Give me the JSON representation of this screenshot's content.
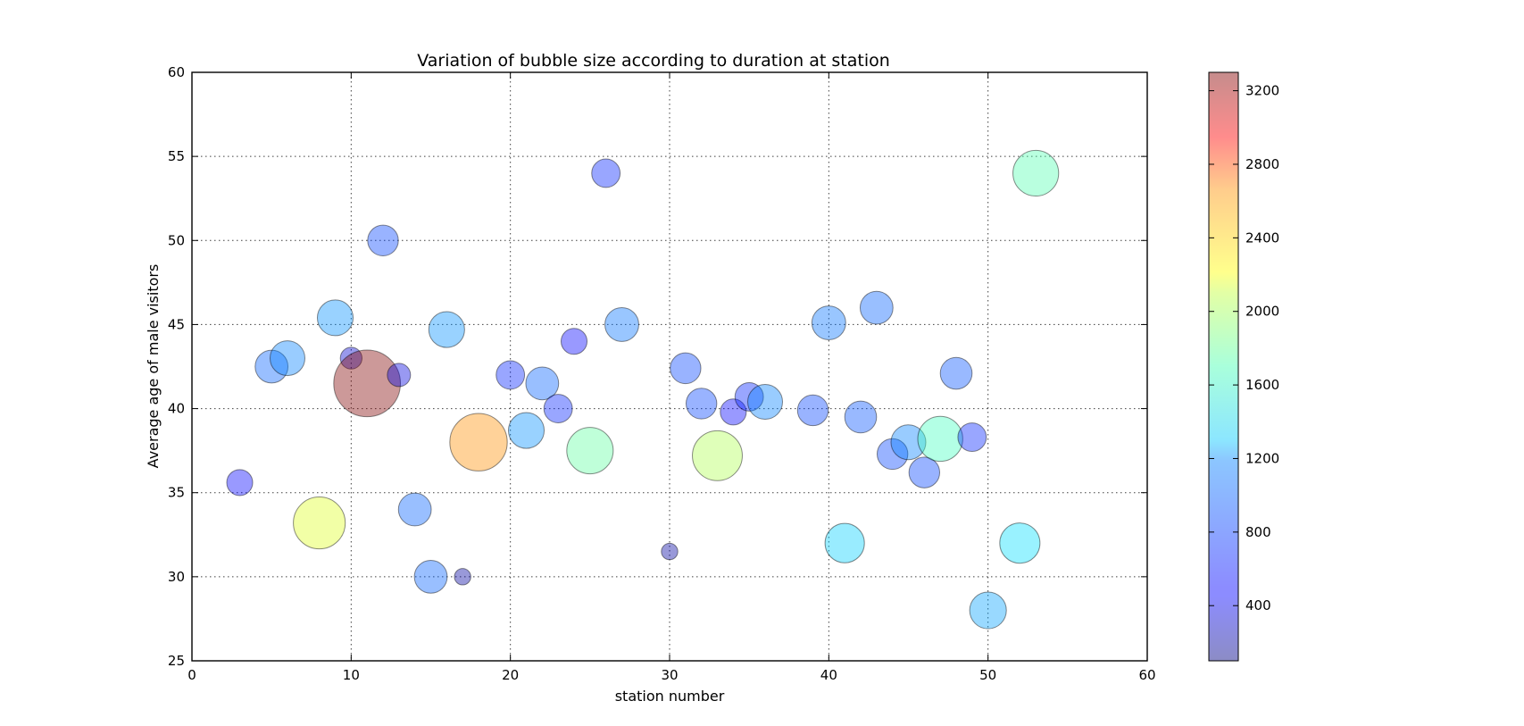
{
  "chart_data": {
    "type": "scatter",
    "title": "Variation of bubble size according to duration at station",
    "xlabel": "station number",
    "ylabel": "Average age of male visitors",
    "xlim": [
      0,
      60
    ],
    "ylim": [
      25,
      60
    ],
    "xticks": [
      0,
      10,
      20,
      30,
      40,
      50,
      60
    ],
    "yticks": [
      25,
      30,
      35,
      40,
      45,
      50,
      55,
      60
    ],
    "grid": true,
    "colorbar": {
      "colormap": "jet",
      "alpha": 0.4,
      "range": [
        100,
        3300
      ],
      "ticks": [
        400,
        800,
        1200,
        1600,
        2000,
        2400,
        2800,
        3200
      ]
    },
    "points": [
      {
        "x": 3,
        "y": 35.6,
        "duration": 500
      },
      {
        "x": 5,
        "y": 42.5,
        "duration": 800
      },
      {
        "x": 6,
        "y": 43.0,
        "duration": 900
      },
      {
        "x": 8,
        "y": 33.2,
        "duration": 2000
      },
      {
        "x": 9,
        "y": 45.4,
        "duration": 950
      },
      {
        "x": 10,
        "y": 43.0,
        "duration": 350
      },
      {
        "x": 11,
        "y": 41.5,
        "duration": 3300
      },
      {
        "x": 12,
        "y": 50.0,
        "duration": 700
      },
      {
        "x": 13,
        "y": 42.0,
        "duration": 400
      },
      {
        "x": 14,
        "y": 34.0,
        "duration": 800
      },
      {
        "x": 15,
        "y": 30.0,
        "duration": 800
      },
      {
        "x": 16,
        "y": 44.7,
        "duration": 950
      },
      {
        "x": 17,
        "y": 30.0,
        "duration": 200
      },
      {
        "x": 18,
        "y": 38.0,
        "duration": 2450
      },
      {
        "x": 20,
        "y": 42.0,
        "duration": 600
      },
      {
        "x": 21,
        "y": 38.7,
        "duration": 950
      },
      {
        "x": 22,
        "y": 41.5,
        "duration": 800
      },
      {
        "x": 23,
        "y": 40.0,
        "duration": 600
      },
      {
        "x": 24,
        "y": 44.0,
        "duration": 500
      },
      {
        "x": 25,
        "y": 37.5,
        "duration": 1600
      },
      {
        "x": 26,
        "y": 54.0,
        "duration": 600
      },
      {
        "x": 27,
        "y": 45.0,
        "duration": 850
      },
      {
        "x": 30,
        "y": 31.5,
        "duration": 200
      },
      {
        "x": 31,
        "y": 42.4,
        "duration": 700
      },
      {
        "x": 32,
        "y": 40.3,
        "duration": 700
      },
      {
        "x": 33,
        "y": 37.2,
        "duration": 1850
      },
      {
        "x": 34,
        "y": 39.8,
        "duration": 500
      },
      {
        "x": 35,
        "y": 40.7,
        "duration": 600
      },
      {
        "x": 36,
        "y": 40.4,
        "duration": 900
      },
      {
        "x": 39,
        "y": 39.9,
        "duration": 700
      },
      {
        "x": 40,
        "y": 45.1,
        "duration": 850
      },
      {
        "x": 41,
        "y": 32.0,
        "duration": 1150
      },
      {
        "x": 42,
        "y": 39.5,
        "duration": 750
      },
      {
        "x": 43,
        "y": 46.0,
        "duration": 800
      },
      {
        "x": 44,
        "y": 37.3,
        "duration": 700
      },
      {
        "x": 45,
        "y": 38.0,
        "duration": 900
      },
      {
        "x": 46,
        "y": 36.2,
        "duration": 700
      },
      {
        "x": 47,
        "y": 38.2,
        "duration": 1500
      },
      {
        "x": 48,
        "y": 42.1,
        "duration": 750
      },
      {
        "x": 49,
        "y": 38.3,
        "duration": 600
      },
      {
        "x": 50,
        "y": 28.0,
        "duration": 1000
      },
      {
        "x": 52,
        "y": 32.0,
        "duration": 1200
      },
      {
        "x": 53,
        "y": 54.0,
        "duration": 1550
      }
    ]
  }
}
